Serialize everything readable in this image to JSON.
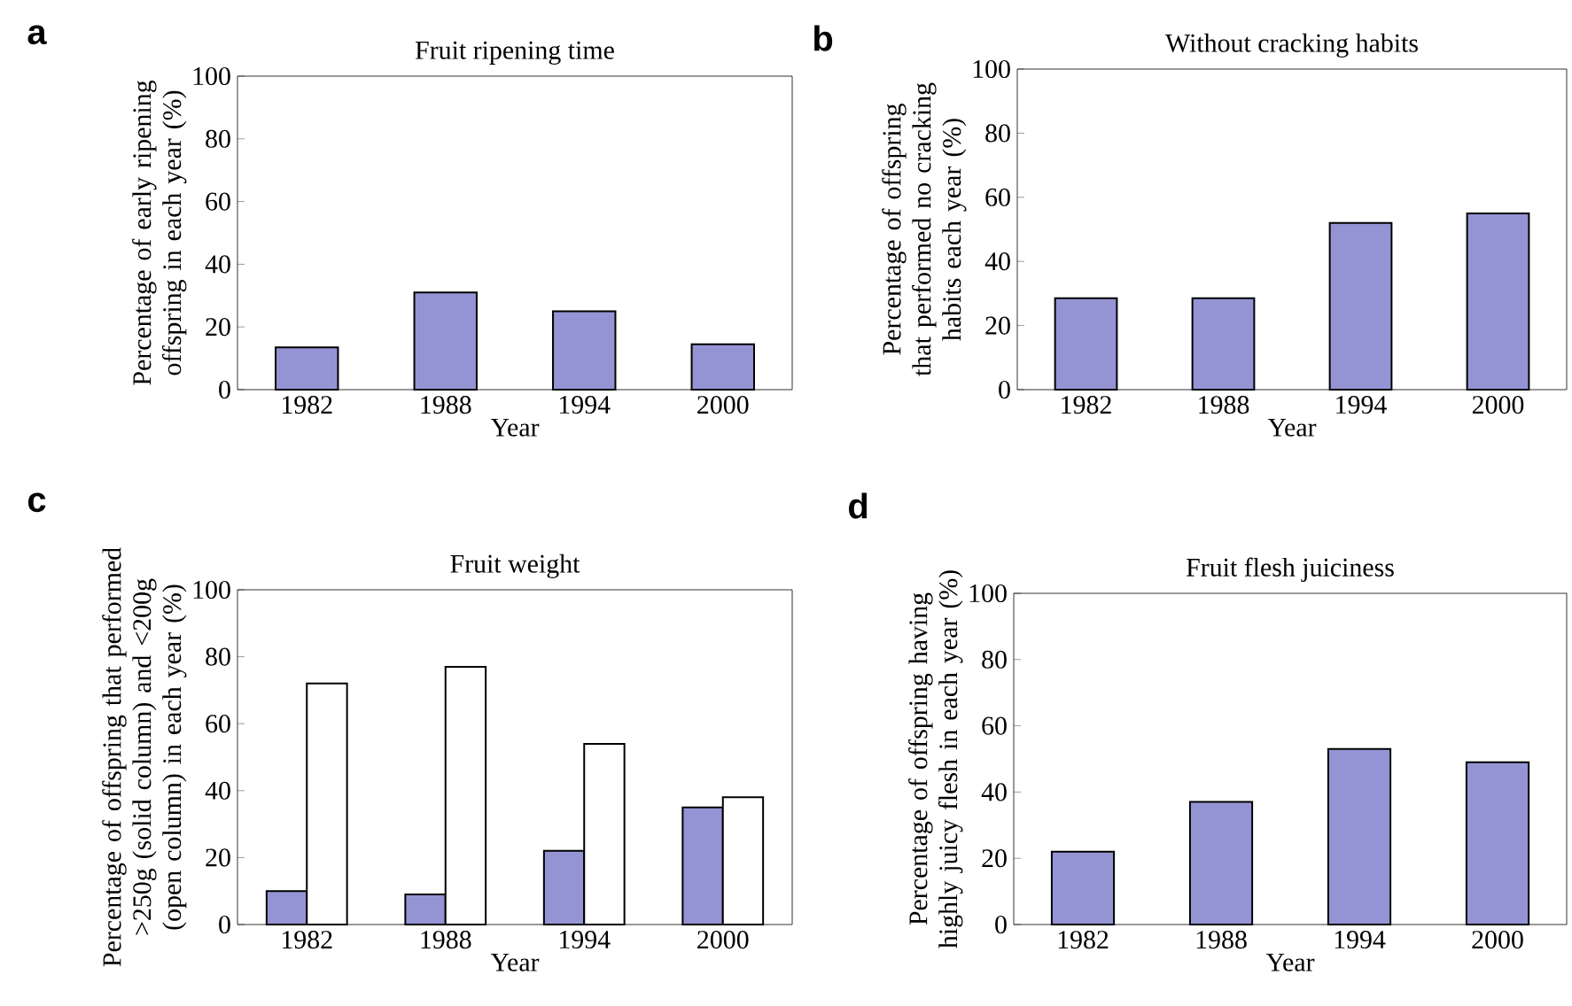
{
  "chart_data": [
    {
      "type": "bar",
      "title": "Fruit ripening time",
      "xlabel": "Year",
      "ylabel": "Percentage of early ripening offspring in each year (%)",
      "categories": [
        "1982",
        "1988",
        "1994",
        "2000"
      ],
      "values": [
        13.5,
        31,
        25,
        14.5
      ],
      "color": "#9494d4",
      "ylim": [
        0,
        100
      ],
      "yticks": [
        0,
        20,
        40,
        60,
        80,
        100
      ],
      "annotations": [
        "a"
      ]
    },
    {
      "type": "bar",
      "title": "Without cracking habits",
      "xlabel": "Year",
      "ylabel": "Percentage of offspring that performed no cracking habits each year (%)",
      "categories": [
        "1982",
        "1988",
        "1994",
        "2000"
      ],
      "values": [
        28.5,
        28.5,
        52,
        55
      ],
      "color": "#9494d4",
      "ylim": [
        0,
        100
      ],
      "yticks": [
        0,
        20,
        40,
        60,
        80,
        100
      ],
      "annotations": [
        "b"
      ]
    },
    {
      "type": "bar",
      "title": "Fruit weight",
      "xlabel": "Year",
      "ylabel": "Percentage of offspring that performed >250g (solid column) and <200g (open column) in each year (%)",
      "categories": [
        "1982",
        "1988",
        "1994",
        "2000"
      ],
      "series": [
        {
          "color": "#9494d4",
          "values": [
            10,
            9,
            22,
            35
          ]
        },
        {
          "color": "#ffffff",
          "values": [
            72,
            77,
            54,
            38
          ]
        }
      ],
      "ylim": [
        0,
        100
      ],
      "yticks": [
        0,
        20,
        40,
        60,
        80,
        100
      ],
      "annotations": [
        "c"
      ]
    },
    {
      "type": "bar",
      "title": "Fruit flesh juiciness",
      "xlabel": "Year",
      "ylabel": "Percentage of offspring having highly juicy flesh in each year (%)",
      "categories": [
        "1982",
        "1988",
        "1994",
        "2000"
      ],
      "values": [
        22,
        37,
        53,
        49
      ],
      "color": "#9494d4",
      "ylim": [
        0,
        100
      ],
      "yticks": [
        0,
        20,
        40,
        60,
        80,
        100
      ],
      "annotations": [
        "d"
      ]
    }
  ]
}
